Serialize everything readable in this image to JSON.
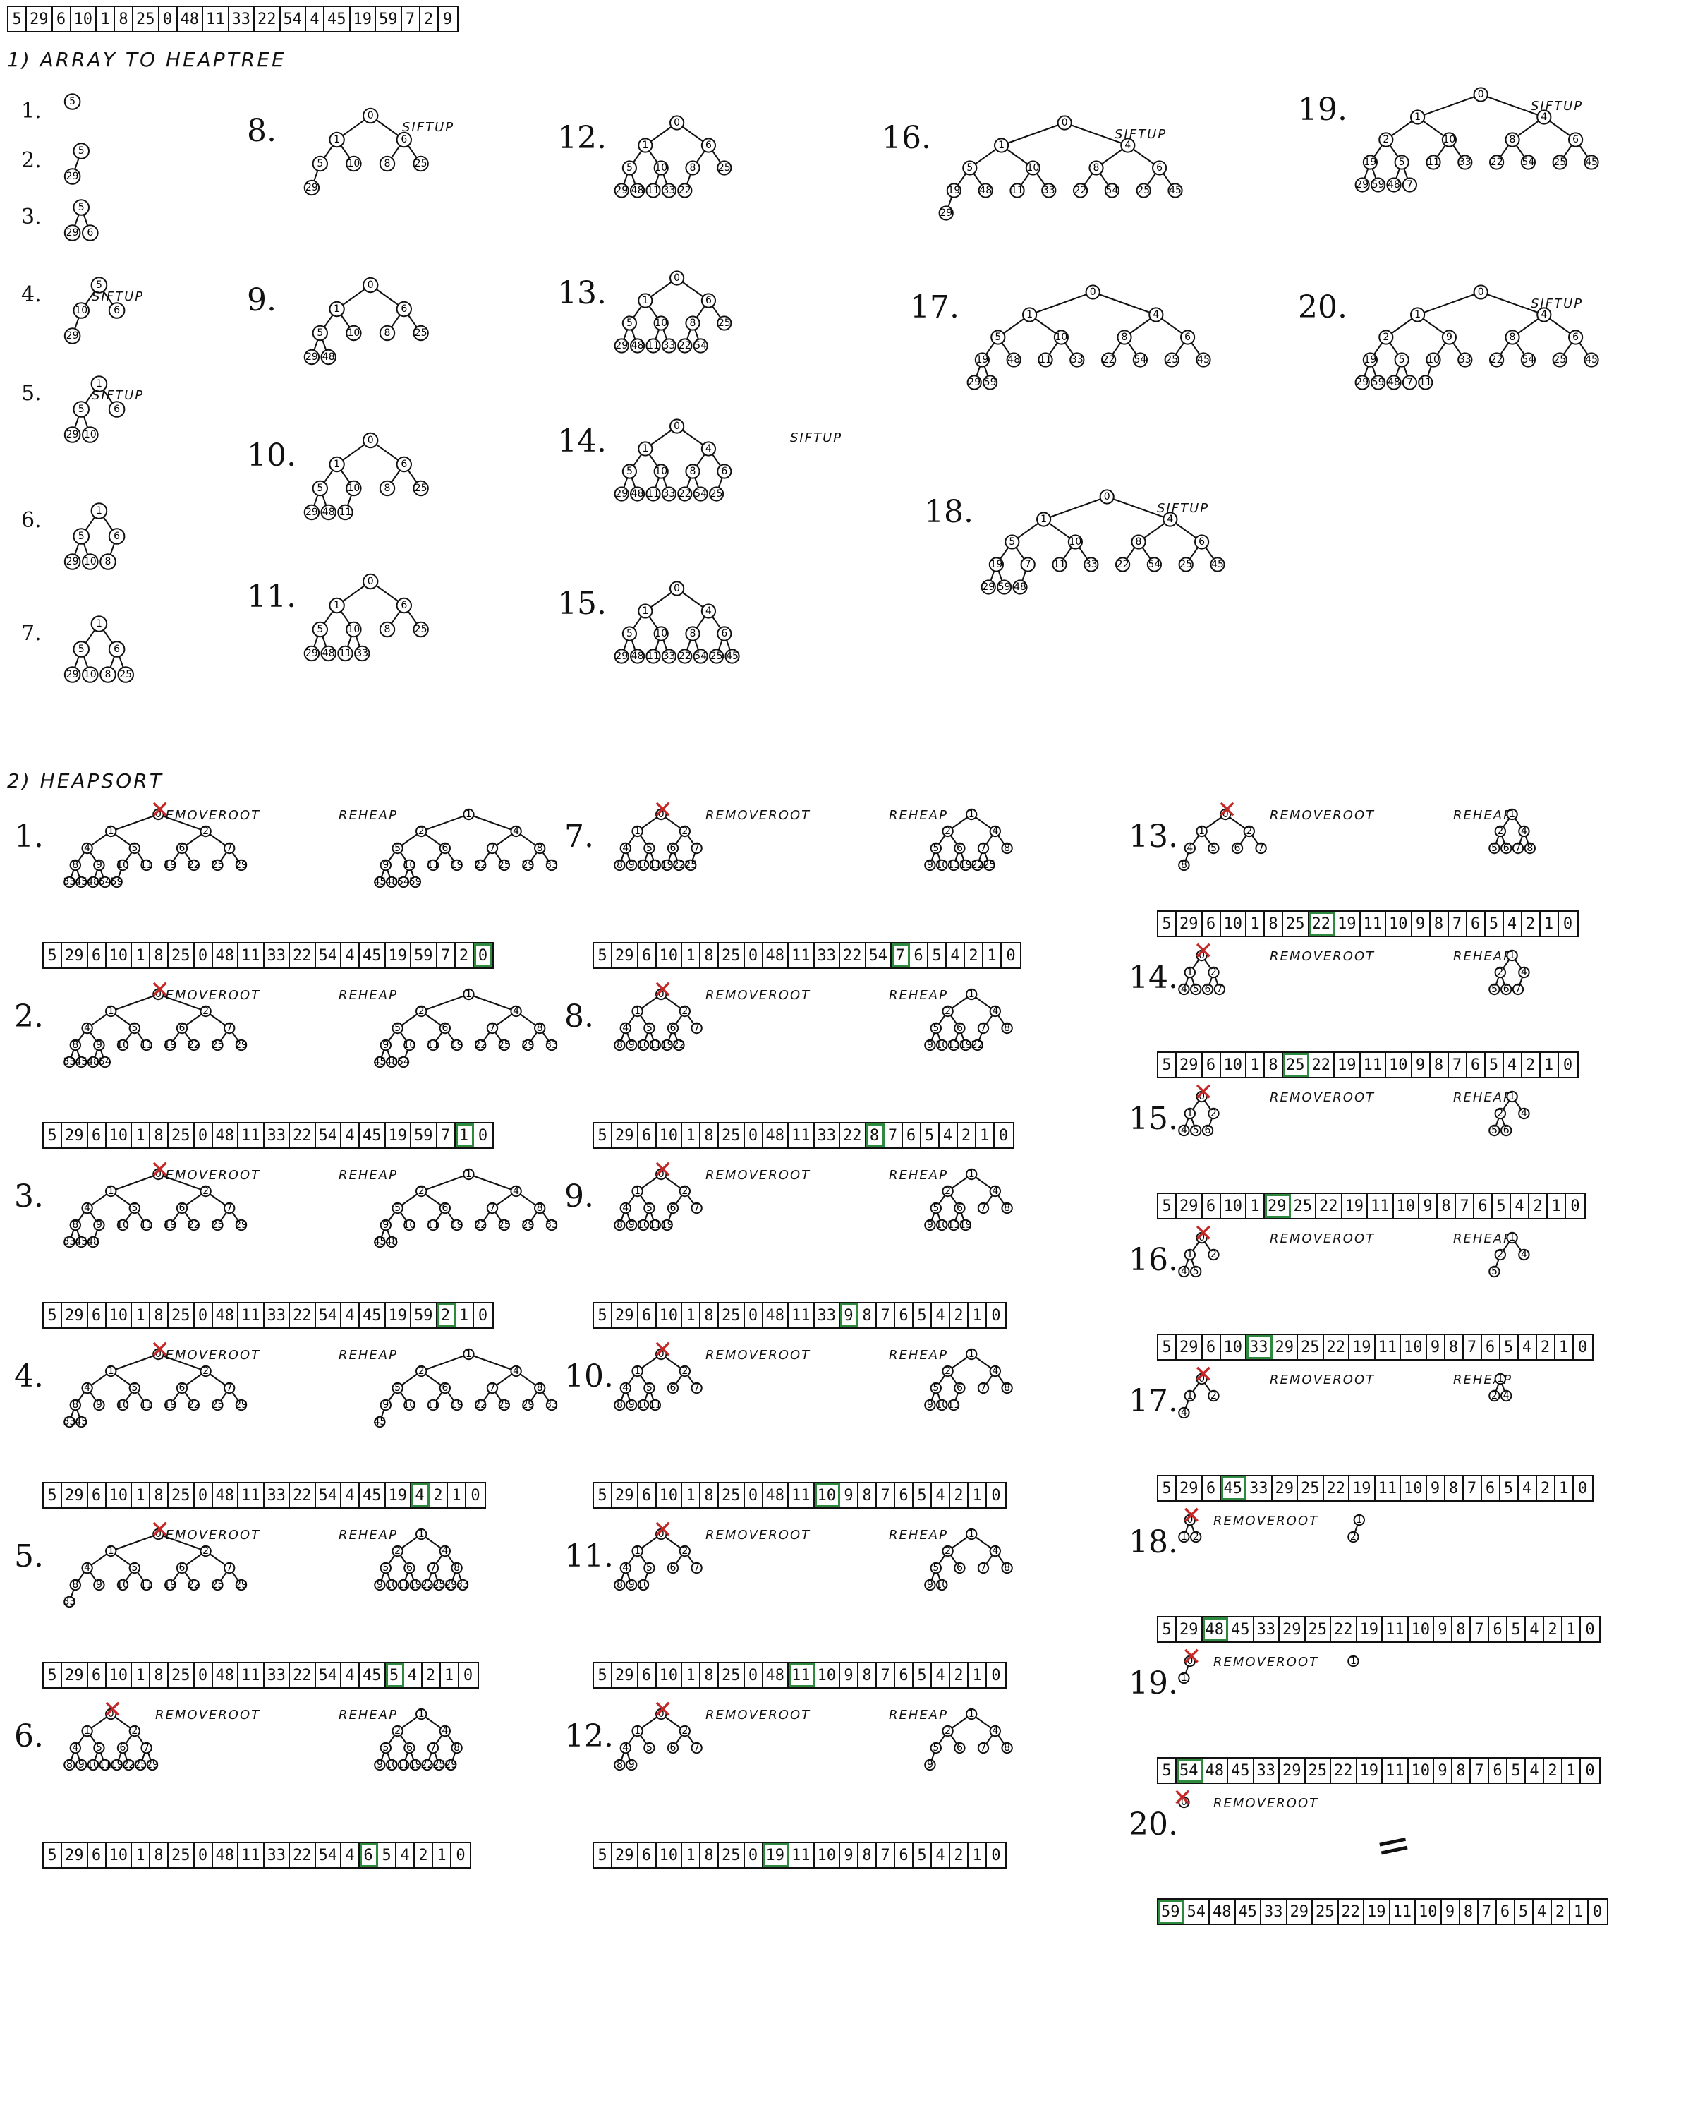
{
  "input_array": [
    "5",
    "29",
    "6",
    "10",
    "1",
    "8",
    "25",
    "0",
    "48",
    "11",
    "33",
    "22",
    "54",
    "4",
    "45",
    "19",
    "59",
    "7",
    "2",
    "9"
  ],
  "part1": {
    "title": "1) ARRAY TO HEAPTREE",
    "sift_label": "SIFTUP",
    "steps": [
      "1.",
      "2.",
      "3.",
      "4.",
      "5.",
      "6.",
      "7.",
      "8.",
      "9.",
      "10.",
      "11.",
      "12.",
      "13.",
      "14.",
      "15.",
      "16.",
      "17.",
      "18.",
      "19.",
      "20."
    ]
  },
  "part2": {
    "title": "2) HEAPSORT",
    "remove_label": "REMOVEROOT",
    "reheap_label": "REHEAP",
    "steps": [
      "1.",
      "2.",
      "3.",
      "4.",
      "5.",
      "6.",
      "7.",
      "8.",
      "9.",
      "10.",
      "11.",
      "12.",
      "13.",
      "14.",
      "15.",
      "16.",
      "17.",
      "18.",
      "19.",
      "20."
    ],
    "arrays": [
      {
        "cells": [
          "5",
          "29",
          "6",
          "10",
          "1",
          "8",
          "25",
          "0",
          "48",
          "11",
          "33",
          "22",
          "54",
          "4",
          "45",
          "19",
          "59",
          "7",
          "2",
          "0"
        ],
        "hl": 19
      },
      {
        "cells": [
          "5",
          "29",
          "6",
          "10",
          "1",
          "8",
          "25",
          "0",
          "48",
          "11",
          "33",
          "22",
          "54",
          "4",
          "45",
          "19",
          "59",
          "7",
          "1",
          "0"
        ],
        "hl": 18
      },
      {
        "cells": [
          "5",
          "29",
          "6",
          "10",
          "1",
          "8",
          "25",
          "0",
          "48",
          "11",
          "33",
          "22",
          "54",
          "4",
          "45",
          "19",
          "59",
          "2",
          "1",
          "0"
        ],
        "hl": 17
      },
      {
        "cells": [
          "5",
          "29",
          "6",
          "10",
          "1",
          "8",
          "25",
          "0",
          "48",
          "11",
          "33",
          "22",
          "54",
          "4",
          "45",
          "19",
          "4",
          "2",
          "1",
          "0"
        ],
        "hl": 16
      },
      {
        "cells": [
          "5",
          "29",
          "6",
          "10",
          "1",
          "8",
          "25",
          "0",
          "48",
          "11",
          "33",
          "22",
          "54",
          "4",
          "45",
          "5",
          "4",
          "2",
          "1",
          "0"
        ],
        "hl": 15
      },
      {
        "cells": [
          "5",
          "29",
          "6",
          "10",
          "1",
          "8",
          "25",
          "0",
          "48",
          "11",
          "33",
          "22",
          "54",
          "4",
          "6",
          "5",
          "4",
          "2",
          "1",
          "0"
        ],
        "hl": 14
      },
      {
        "cells": [
          "5",
          "29",
          "6",
          "10",
          "1",
          "8",
          "25",
          "0",
          "48",
          "11",
          "33",
          "22",
          "54",
          "7",
          "6",
          "5",
          "4",
          "2",
          "1",
          "0"
        ],
        "hl": 13
      },
      {
        "cells": [
          "5",
          "29",
          "6",
          "10",
          "1",
          "8",
          "25",
          "0",
          "48",
          "11",
          "33",
          "22",
          "8",
          "7",
          "6",
          "5",
          "4",
          "2",
          "1",
          "0"
        ],
        "hl": 12
      },
      {
        "cells": [
          "5",
          "29",
          "6",
          "10",
          "1",
          "8",
          "25",
          "0",
          "48",
          "11",
          "33",
          "9",
          "8",
          "7",
          "6",
          "5",
          "4",
          "2",
          "1",
          "0"
        ],
        "hl": 11
      },
      {
        "cells": [
          "5",
          "29",
          "6",
          "10",
          "1",
          "8",
          "25",
          "0",
          "48",
          "11",
          "10",
          "9",
          "8",
          "7",
          "6",
          "5",
          "4",
          "2",
          "1",
          "0"
        ],
        "hl": 10
      },
      {
        "cells": [
          "5",
          "29",
          "6",
          "10",
          "1",
          "8",
          "25",
          "0",
          "48",
          "11",
          "10",
          "9",
          "8",
          "7",
          "6",
          "5",
          "4",
          "2",
          "1",
          "0"
        ],
        "hl": 9
      },
      {
        "cells": [
          "5",
          "29",
          "6",
          "10",
          "1",
          "8",
          "25",
          "0",
          "19",
          "11",
          "10",
          "9",
          "8",
          "7",
          "6",
          "5",
          "4",
          "2",
          "1",
          "0"
        ],
        "hl": 8
      },
      {
        "cells": [
          "5",
          "29",
          "6",
          "10",
          "1",
          "8",
          "25",
          "22",
          "19",
          "11",
          "10",
          "9",
          "8",
          "7",
          "6",
          "5",
          "4",
          "2",
          "1",
          "0"
        ],
        "hl": 7
      },
      {
        "cells": [
          "5",
          "29",
          "6",
          "10",
          "1",
          "8",
          "25",
          "22",
          "19",
          "11",
          "10",
          "9",
          "8",
          "7",
          "6",
          "5",
          "4",
          "2",
          "1",
          "0"
        ],
        "hl": 6
      },
      {
        "cells": [
          "5",
          "29",
          "6",
          "10",
          "1",
          "29",
          "25",
          "22",
          "19",
          "11",
          "10",
          "9",
          "8",
          "7",
          "6",
          "5",
          "4",
          "2",
          "1",
          "0"
        ],
        "hl": 5
      },
      {
        "cells": [
          "5",
          "29",
          "6",
          "10",
          "33",
          "29",
          "25",
          "22",
          "19",
          "11",
          "10",
          "9",
          "8",
          "7",
          "6",
          "5",
          "4",
          "2",
          "1",
          "0"
        ],
        "hl": 4
      },
      {
        "cells": [
          "5",
          "29",
          "6",
          "45",
          "33",
          "29",
          "25",
          "22",
          "19",
          "11",
          "10",
          "9",
          "8",
          "7",
          "6",
          "5",
          "4",
          "2",
          "1",
          "0"
        ],
        "hl": 3
      },
      {
        "cells": [
          "5",
          "29",
          "48",
          "45",
          "33",
          "29",
          "25",
          "22",
          "19",
          "11",
          "10",
          "9",
          "8",
          "7",
          "6",
          "5",
          "4",
          "2",
          "1",
          "0"
        ],
        "hl": 2
      },
      {
        "cells": [
          "5",
          "54",
          "48",
          "45",
          "33",
          "29",
          "25",
          "22",
          "19",
          "11",
          "10",
          "9",
          "8",
          "7",
          "6",
          "5",
          "4",
          "2",
          "1",
          "0"
        ],
        "hl": 1
      },
      {
        "cells": [
          "59",
          "54",
          "48",
          "45",
          "33",
          "29",
          "25",
          "22",
          "19",
          "11",
          "10",
          "9",
          "8",
          "7",
          "6",
          "5",
          "4",
          "2",
          "1",
          "0"
        ],
        "hl": 0
      }
    ],
    "final_mark": "="
  },
  "colors": {
    "highlight": "#2d8a3e",
    "cross": "#c62828",
    "ink": "#111111"
  }
}
